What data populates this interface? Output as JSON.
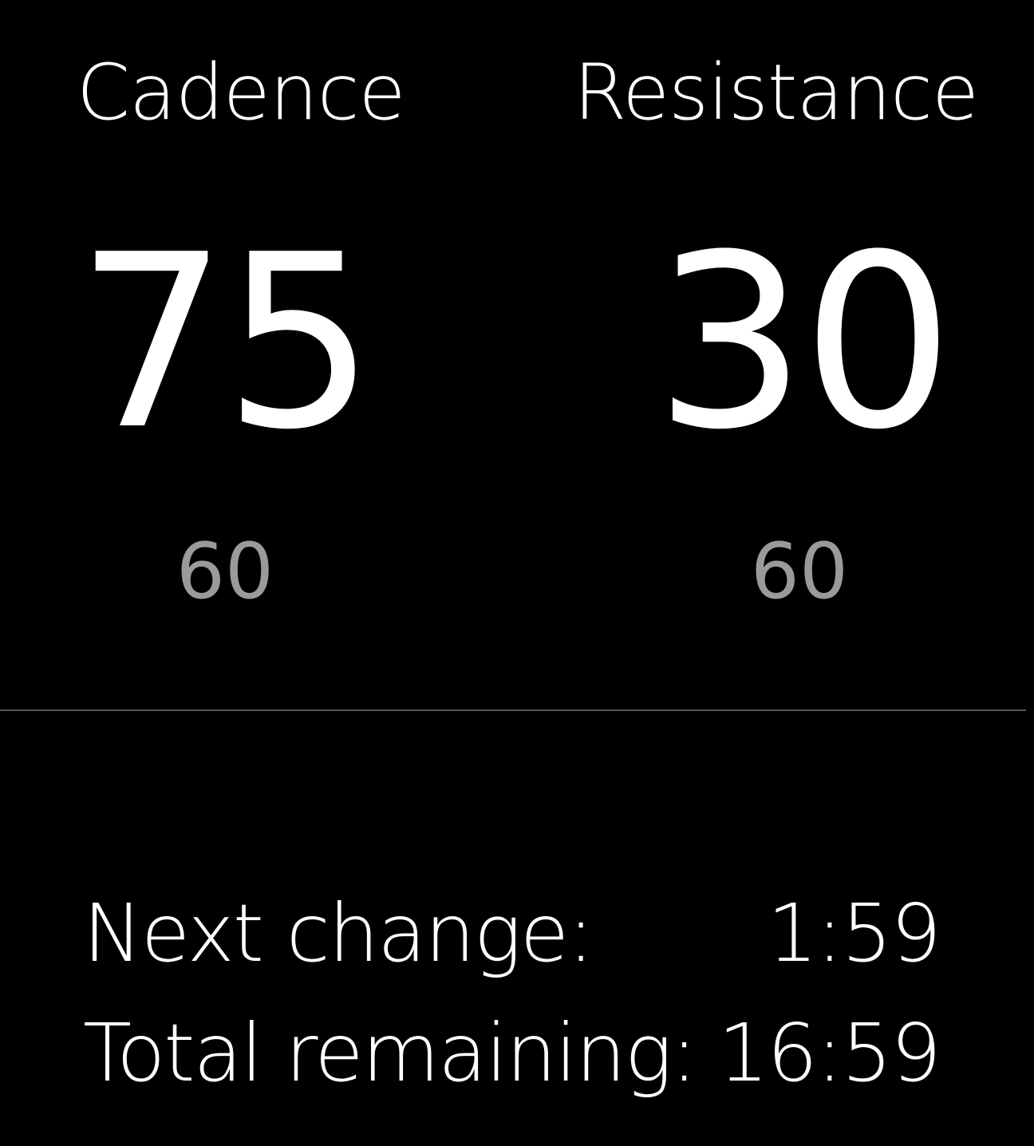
{
  "colors": {
    "background": "#000000",
    "primary_text": "#ffffff",
    "target_text": "#9a9a9a",
    "divider": "#555555"
  },
  "metrics": {
    "cadence": {
      "label": "Cadence",
      "value": "75",
      "target": "60"
    },
    "resistance": {
      "label": "Resistance",
      "value": "30",
      "target": "60"
    }
  },
  "timers": {
    "next_change": {
      "label": "Next change:",
      "value": "1:59"
    },
    "total_remaining": {
      "label": "Total remaining:",
      "value": "16:59"
    }
  }
}
